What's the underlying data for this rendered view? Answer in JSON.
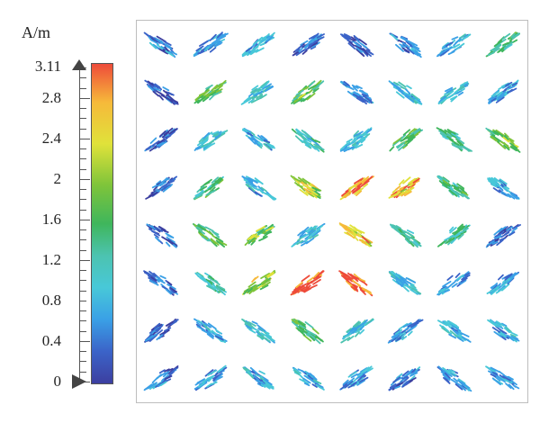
{
  "legend": {
    "unit": "A/m",
    "max_label": "3.11",
    "ticks": [
      "2.8",
      "2.4",
      "2",
      "1.6",
      "1.2",
      "0.8",
      "0.4"
    ],
    "min_label": "0",
    "gradient_colors": [
      "#3c3fa0",
      "#3b63c8",
      "#3aa0e6",
      "#48c8d8",
      "#4cc3b0",
      "#3fb65c",
      "#7ec43a",
      "#e0e23a",
      "#f6b93a",
      "#ee4b3a"
    ]
  },
  "field": {
    "rows": 8,
    "cols": 8,
    "magnitude_grid": [
      [
        0.5,
        0.6,
        0.8,
        0.5,
        0.3,
        0.5,
        0.8,
        1.6
      ],
      [
        0.3,
        1.7,
        1.0,
        1.9,
        0.6,
        0.9,
        1.0,
        0.7
      ],
      [
        0.4,
        1.1,
        0.9,
        1.2,
        1.0,
        1.7,
        1.5,
        1.9
      ],
      [
        0.4,
        1.5,
        0.8,
        2.2,
        2.8,
        2.6,
        1.5,
        0.7
      ],
      [
        0.4,
        1.7,
        1.9,
        1.0,
        2.5,
        1.4,
        1.4,
        0.4
      ],
      [
        0.4,
        1.3,
        2.2,
        3.1,
        3.0,
        1.0,
        0.6,
        0.7
      ],
      [
        0.3,
        0.8,
        1.1,
        1.6,
        1.1,
        0.7,
        0.9,
        0.8
      ],
      [
        0.5,
        0.7,
        0.9,
        0.8,
        0.7,
        0.5,
        0.6,
        0.8
      ]
    ],
    "orientation_deg": [
      [
        35,
        -35,
        -35,
        -35,
        35,
        35,
        -35,
        -35
      ],
      [
        35,
        -35,
        -35,
        -35,
        35,
        35,
        -35,
        -35
      ],
      [
        -35,
        -35,
        35,
        35,
        -35,
        -35,
        35,
        35
      ],
      [
        -35,
        -35,
        35,
        35,
        -35,
        -35,
        35,
        35
      ],
      [
        35,
        35,
        -35,
        -35,
        35,
        35,
        -35,
        -35
      ],
      [
        35,
        35,
        -35,
        -35,
        35,
        35,
        -35,
        -35
      ],
      [
        -35,
        35,
        35,
        35,
        -35,
        -35,
        35,
        35
      ],
      [
        -35,
        -35,
        35,
        35,
        -35,
        -35,
        35,
        35
      ]
    ]
  }
}
